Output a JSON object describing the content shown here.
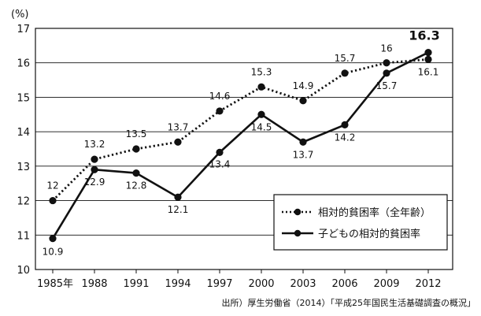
{
  "chart_data": {
    "type": "line",
    "unit_label": "(%)",
    "categories": [
      "1985年",
      "1988",
      "1991",
      "1994",
      "1997",
      "2000",
      "2003",
      "2006",
      "2009",
      "2012"
    ],
    "ylim": [
      10,
      17
    ],
    "y_ticks": [
      "10",
      "11",
      "12",
      "13",
      "14",
      "15",
      "16",
      "17"
    ],
    "grid": "horizontal",
    "legend_position": "lower-right",
    "series": [
      {
        "name": "相対的貧困率（全年齢）",
        "style": "dotted",
        "values": [
          12.0,
          13.2,
          13.5,
          13.7,
          14.6,
          15.3,
          14.9,
          15.7,
          16.0,
          16.1
        ],
        "labels": [
          "12",
          "13.2",
          "13.5",
          "13.7",
          "14.6",
          "15.3",
          "14.9",
          "15.7",
          "16",
          "16.1"
        ]
      },
      {
        "name": "子どもの相対的貧困率",
        "style": "solid",
        "values": [
          10.9,
          12.9,
          12.8,
          12.1,
          13.4,
          14.5,
          13.7,
          14.2,
          15.7,
          16.3
        ],
        "labels": [
          "10.9",
          "12.9",
          "12.8",
          "12.1",
          "13.4",
          "14.5",
          "13.7",
          "14.2",
          "15.7",
          "16.3"
        ]
      }
    ],
    "color": "#111111"
  },
  "source": "出所）厚生労働省（2014）「平成25年国民生活基礎調査の概況」"
}
